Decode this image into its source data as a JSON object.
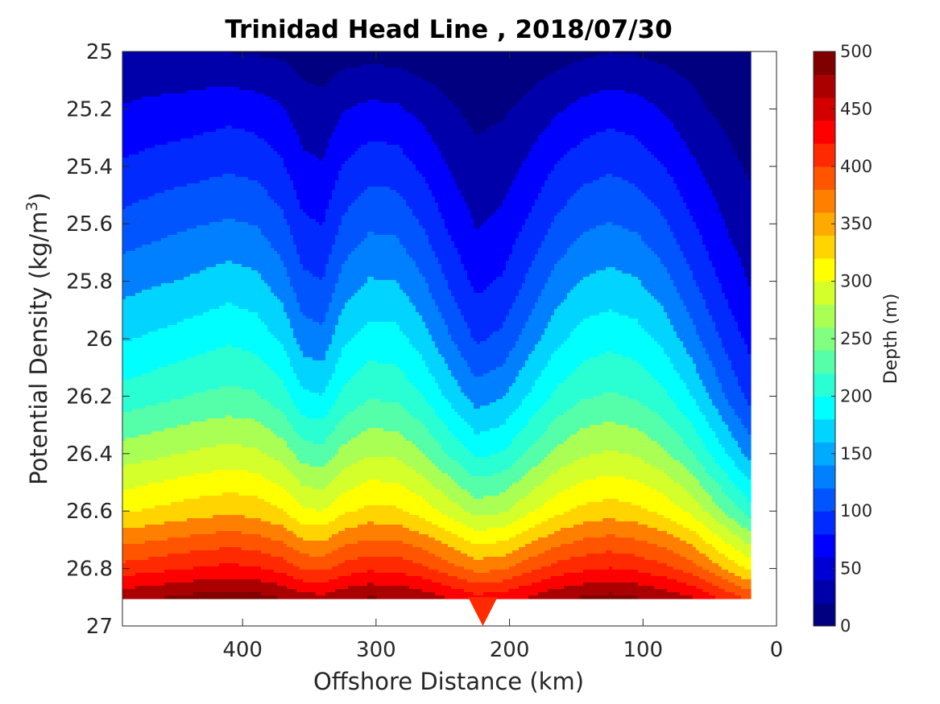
{
  "chart_data": {
    "type": "heatmap",
    "subtype": "filled-contour",
    "title": "Trinidad Head Line , 2018/07/30",
    "xlabel": "Offshore Distance (km)",
    "ylabel_main": "Potential Density (kg/m",
    "ylabel_sup": "3",
    "ylabel_close": ")",
    "colorbar_label": "Depth (m)",
    "xlim": [
      490,
      0
    ],
    "x_reversed": true,
    "ylim": [
      25,
      27
    ],
    "y_reversed": true,
    "x_ticks": [
      400,
      300,
      200,
      100,
      0
    ],
    "x_tick_labels": [
      "400",
      "300",
      "200",
      "100",
      "0"
    ],
    "y_ticks": [
      25,
      25.2,
      25.4,
      25.6,
      25.8,
      26,
      26.2,
      26.4,
      26.6,
      26.8,
      27
    ],
    "y_tick_labels": [
      "25",
      "25.2",
      "25.4",
      "25.6",
      "25.8",
      "26",
      "26.2",
      "26.4",
      "26.6",
      "26.8",
      "27"
    ],
    "colorbar_range": [
      0,
      500
    ],
    "colorbar_ticks": [
      0,
      50,
      100,
      150,
      200,
      250,
      300,
      350,
      400,
      450,
      500
    ],
    "colorbar_tick_labels": [
      "0",
      "50",
      "100",
      "150",
      "200",
      "250",
      "300",
      "350",
      "400",
      "450",
      "500"
    ],
    "contour_levels": [
      0,
      25,
      50,
      75,
      100,
      125,
      150,
      175,
      200,
      225,
      250,
      275,
      300,
      325,
      350,
      375,
      400,
      425,
      450,
      475,
      500
    ],
    "colormap": [
      "#000080",
      "#0000aa",
      "#0000d4",
      "#0000ff",
      "#002aff",
      "#0055ff",
      "#0080ff",
      "#00aaff",
      "#00d4ff",
      "#00ffff",
      "#2affd4",
      "#55ffaa",
      "#80ff80",
      "#aaff55",
      "#d4ff2a",
      "#ffff00",
      "#ffd400",
      "#ffaa00",
      "#ff8000",
      "#ff5500",
      "#ff2a00",
      "#ff0000",
      "#d40000",
      "#aa0000",
      "#800000"
    ],
    "x": [
      490,
      470,
      450,
      430,
      410,
      390,
      370,
      355,
      340,
      325,
      305,
      285,
      265,
      245,
      225,
      205,
      185,
      165,
      145,
      125,
      105,
      85,
      65,
      50,
      35,
      20
    ],
    "depth_on_density_grid": {
      "y": [
        25.0,
        25.2,
        25.4,
        25.6,
        25.8,
        26.0,
        26.2,
        26.4,
        26.6,
        26.8,
        26.9
      ],
      "z": [
        [
          28,
          30,
          27,
          28,
          24,
          22,
          20,
          14,
          12,
          14,
          16,
          14,
          10,
          8,
          6,
          8,
          10,
          14,
          20,
          24,
          22,
          18,
          14,
          10,
          8,
          6
        ],
        [
          52,
          56,
          58,
          62,
          66,
          62,
          52,
          36,
          32,
          48,
          56,
          54,
          42,
          28,
          18,
          22,
          32,
          46,
          58,
          64,
          60,
          48,
          34,
          24,
          18,
          14
        ],
        [
          78,
          84,
          88,
          92,
          96,
          92,
          78,
          56,
          52,
          76,
          90,
          88,
          70,
          48,
          32,
          38,
          56,
          76,
          90,
          96,
          90,
          76,
          56,
          42,
          30,
          22
        ],
        [
          108,
          114,
          120,
          124,
          128,
          124,
          106,
          80,
          74,
          104,
          120,
          118,
          98,
          70,
          48,
          56,
          80,
          104,
          120,
          126,
          120,
          104,
          80,
          62,
          46,
          34
        ],
        [
          140,
          146,
          150,
          156,
          162,
          156,
          136,
          106,
          100,
          134,
          152,
          150,
          128,
          96,
          68,
          78,
          106,
          134,
          152,
          158,
          152,
          134,
          106,
          84,
          64,
          48
        ],
        [
          172,
          178,
          184,
          190,
          196,
          190,
          170,
          138,
          132,
          168,
          186,
          184,
          162,
          128,
          96,
          106,
          138,
          168,
          186,
          192,
          186,
          168,
          138,
          112,
          88,
          68
        ],
        [
          210,
          216,
          222,
          228,
          232,
          228,
          210,
          180,
          176,
          206,
          222,
          220,
          200,
          168,
          138,
          148,
          178,
          206,
          222,
          228,
          222,
          206,
          178,
          148,
          118,
          92
        ],
        [
          262,
          268,
          274,
          280,
          284,
          280,
          264,
          238,
          234,
          258,
          272,
          270,
          252,
          222,
          194,
          202,
          230,
          256,
          272,
          278,
          272,
          256,
          230,
          200,
          170,
          140
        ],
        [
          322,
          328,
          334,
          340,
          344,
          340,
          326,
          304,
          300,
          320,
          332,
          330,
          314,
          290,
          266,
          272,
          296,
          318,
          332,
          338,
          332,
          318,
          296,
          268,
          240,
          212
        ],
        [
          410,
          416,
          422,
          428,
          432,
          428,
          416,
          398,
          394,
          410,
          420,
          418,
          406,
          386,
          366,
          372,
          392,
          410,
          420,
          426,
          420,
          408,
          390,
          366,
          342,
          318
        ],
        [
          468,
          472,
          478,
          484,
          488,
          484,
          474,
          460,
          456,
          468,
          476,
          474,
          464,
          448,
          432,
          436,
          452,
          468,
          476,
          482,
          476,
          466,
          452,
          432,
          412,
          392
        ]
      ]
    },
    "notes_visible": "Data coverage ends at density 26.9 except a narrow tongue near 220 km reaching 27; nearshore coverage ends near 30 to 40 km."
  }
}
